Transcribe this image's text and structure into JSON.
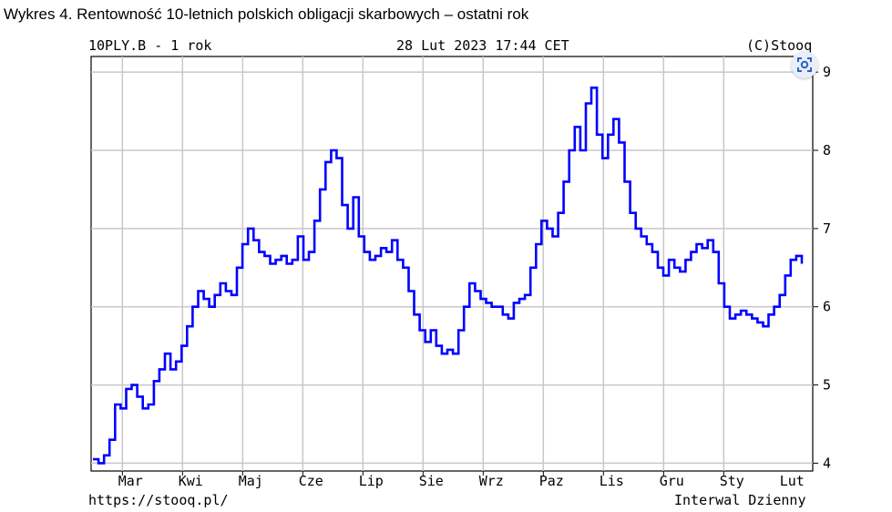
{
  "caption": "Wykres 4. Rentowność 10-letnich polskich obligacji skarbowych – ostatni rok",
  "header": {
    "symbol": "10PLY.B - 1 rok",
    "timestamp": "28 Lut 2023 17:44 CET",
    "copyright": "(C)Stooq"
  },
  "footer": {
    "url": "https://stooq.pl/",
    "interval": "Interwal Dzienny"
  },
  "icons": {
    "corner": "lens-scan-icon"
  },
  "colors": {
    "series": "#0000ff",
    "grid": "#c8c8c8",
    "axis": "#000000"
  },
  "chart_data": {
    "type": "line",
    "ylim": [
      3.9,
      9.2
    ],
    "yticks": [
      4,
      5,
      6,
      7,
      8,
      9
    ],
    "xtick_labels": [
      "Mar",
      "Kwi",
      "Maj",
      "Cze",
      "Lip",
      "Sie",
      "Wrz",
      "Paz",
      "Lis",
      "Gru",
      "Sty",
      "Lut"
    ],
    "grid": true,
    "legend": "none",
    "series": [
      {
        "values": [
          4.05,
          4.0,
          4.1,
          4.3,
          4.75,
          4.7,
          4.95,
          5.0,
          4.85,
          4.7,
          4.75,
          5.05,
          5.2,
          5.4,
          5.2,
          5.3,
          5.5,
          5.75,
          6.0,
          6.2,
          6.1,
          6.0,
          6.15,
          6.3,
          6.2,
          6.15,
          6.5,
          6.8,
          7.0,
          6.85,
          6.7,
          6.65,
          6.55,
          6.6,
          6.65,
          6.55,
          6.6,
          6.9,
          6.6,
          6.7,
          7.1,
          7.5,
          7.85,
          8.0,
          7.9,
          7.3,
          7.0,
          7.4,
          6.9,
          6.7,
          6.6,
          6.65,
          6.75,
          6.7,
          6.85,
          6.6,
          6.5,
          6.2,
          5.9,
          5.7,
          5.55,
          5.7,
          5.5,
          5.4,
          5.45,
          5.4,
          5.7,
          6.0,
          6.3,
          6.2,
          6.1,
          6.05,
          6.0,
          6.0,
          5.9,
          5.85,
          6.05,
          6.1,
          6.15,
          6.5,
          6.8,
          7.1,
          7.0,
          6.9,
          7.2,
          7.6,
          8.0,
          8.3,
          8.0,
          8.6,
          8.8,
          8.2,
          7.9,
          8.2,
          8.4,
          8.1,
          7.6,
          7.2,
          7.0,
          6.9,
          6.8,
          6.7,
          6.5,
          6.4,
          6.6,
          6.5,
          6.45,
          6.6,
          6.7,
          6.8,
          6.75,
          6.85,
          6.7,
          6.3,
          6.0,
          5.85,
          5.9,
          5.95,
          5.9,
          5.85,
          5.8,
          5.75,
          5.9,
          6.0,
          6.15,
          6.4,
          6.6,
          6.65,
          6.55
        ]
      }
    ]
  }
}
